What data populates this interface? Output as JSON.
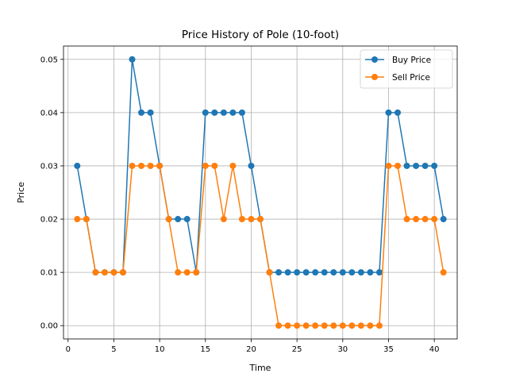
{
  "chart_data": {
    "type": "line",
    "title": "Price History of Pole (10-foot)",
    "xlabel": "Time",
    "ylabel": "Price",
    "xlim": [
      -0.5,
      42.5
    ],
    "ylim": [
      -0.0025,
      0.0525
    ],
    "xticks": [
      0,
      5,
      10,
      15,
      20,
      25,
      30,
      35,
      40
    ],
    "yticks": [
      0.0,
      0.01,
      0.02,
      0.03,
      0.04,
      0.05
    ],
    "xtick_labels": [
      "0",
      "5",
      "10",
      "15",
      "20",
      "25",
      "30",
      "35",
      "40"
    ],
    "ytick_labels": [
      "0.00",
      "0.01",
      "0.02",
      "0.03",
      "0.04",
      "0.05"
    ],
    "grid": true,
    "legend_position": "top-right",
    "x": [
      1,
      2,
      3,
      4,
      5,
      6,
      7,
      8,
      9,
      10,
      11,
      12,
      13,
      14,
      15,
      16,
      17,
      18,
      19,
      20,
      21,
      22,
      23,
      24,
      25,
      26,
      27,
      28,
      29,
      30,
      31,
      32,
      33,
      34,
      35,
      36,
      37,
      38,
      39,
      40,
      41
    ],
    "series": [
      {
        "name": "Buy Price",
        "color": "#1f77b4",
        "values": [
          0.03,
          0.02,
          0.01,
          0.01,
          0.01,
          0.01,
          0.05,
          0.04,
          0.04,
          0.03,
          0.02,
          0.02,
          0.02,
          0.01,
          0.04,
          0.04,
          0.04,
          0.04,
          0.04,
          0.03,
          0.02,
          0.01,
          0.01,
          0.01,
          0.01,
          0.01,
          0.01,
          0.01,
          0.01,
          0.01,
          0.01,
          0.01,
          0.01,
          0.01,
          0.04,
          0.04,
          0.03,
          0.03,
          0.03,
          0.03,
          0.02
        ]
      },
      {
        "name": "Sell Price",
        "color": "#ff7f0e",
        "values": [
          0.02,
          0.02,
          0.01,
          0.01,
          0.01,
          0.01,
          0.03,
          0.03,
          0.03,
          0.03,
          0.02,
          0.01,
          0.01,
          0.01,
          0.03,
          0.03,
          0.02,
          0.03,
          0.02,
          0.02,
          0.02,
          0.01,
          0.0,
          0.0,
          0.0,
          0.0,
          0.0,
          0.0,
          0.0,
          0.0,
          0.0,
          0.0,
          0.0,
          0.0,
          0.03,
          0.03,
          0.02,
          0.02,
          0.02,
          0.02,
          0.01
        ]
      }
    ]
  }
}
